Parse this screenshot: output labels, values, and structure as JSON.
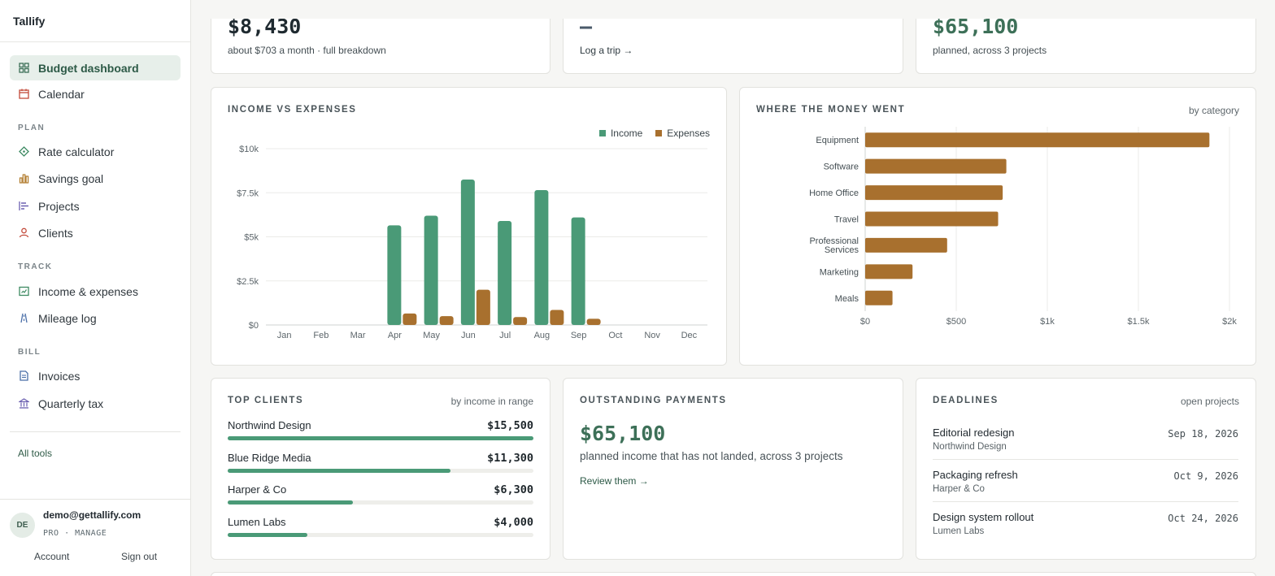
{
  "app": {
    "name": "Tallify"
  },
  "sidebar": {
    "main_items": [
      {
        "label": "Budget dashboard",
        "icon": "grid-icon",
        "active": true
      },
      {
        "label": "Calendar",
        "icon": "calendar-icon"
      }
    ],
    "sections": [
      {
        "label": "PLAN",
        "items": [
          {
            "label": "Rate calculator",
            "icon": "diamond-icon"
          },
          {
            "label": "Savings goal",
            "icon": "bar-chart-icon"
          },
          {
            "label": "Projects",
            "icon": "gantt-icon"
          },
          {
            "label": "Clients",
            "icon": "person-icon"
          }
        ]
      },
      {
        "label": "TRACK",
        "items": [
          {
            "label": "Income & expenses",
            "icon": "ledger-icon"
          },
          {
            "label": "Mileage log",
            "icon": "road-icon"
          }
        ]
      },
      {
        "label": "BILL",
        "items": [
          {
            "label": "Invoices",
            "icon": "document-icon"
          },
          {
            "label": "Quarterly tax",
            "icon": "bank-icon"
          }
        ]
      }
    ],
    "all_tools": "All tools",
    "user": {
      "initials": "DE",
      "email": "demo@gettallify.com",
      "plan": "PRO · MANAGE",
      "account": "Account",
      "sign_out": "Sign out"
    }
  },
  "summary": {
    "card1": {
      "value": "$8,430",
      "sub": "about $703 a month · full breakdown"
    },
    "card2": {
      "value": "—",
      "link": "Log a trip →"
    },
    "card3": {
      "value": "$65,100",
      "sub": "planned, across 3 projects"
    }
  },
  "colors": {
    "income": "#4a9a77",
    "expenses": "#a8702e",
    "accent": "#3d7058"
  },
  "chart_data": [
    {
      "type": "bar",
      "title": "INCOME VS EXPENSES",
      "categories": [
        "Jan",
        "Feb",
        "Mar",
        "Apr",
        "May",
        "Jun",
        "Jul",
        "Aug",
        "Sep",
        "Oct",
        "Nov",
        "Dec"
      ],
      "series": [
        {
          "name": "Income",
          "values": [
            0,
            0,
            0,
            5650,
            6200,
            8250,
            5900,
            7650,
            6100,
            0,
            0,
            0
          ]
        },
        {
          "name": "Expenses",
          "values": [
            0,
            0,
            0,
            650,
            500,
            2000,
            450,
            850,
            350,
            0,
            0,
            0
          ]
        }
      ],
      "ylim": [
        0,
        10000
      ],
      "yticks": [
        "$0",
        "$2.5k",
        "$5k",
        "$7.5k",
        "$10k"
      ],
      "ytick_values": [
        0,
        2500,
        5000,
        7500,
        10000
      ],
      "legend": "top-right",
      "grid": true
    },
    {
      "type": "bar",
      "orientation": "horizontal",
      "title": "WHERE THE MONEY WENT",
      "subtitle": "by category",
      "categories": [
        "Equipment",
        "Software",
        "Home Office",
        "Travel",
        "Professional Services",
        "Marketing",
        "Meals"
      ],
      "values": [
        1890,
        775,
        755,
        730,
        450,
        260,
        150
      ],
      "xlim": [
        0,
        2000
      ],
      "xticks": [
        "$0",
        "$500",
        "$1k",
        "$1.5k",
        "$2k"
      ],
      "xtick_values": [
        0,
        500,
        1000,
        1500,
        2000
      ],
      "grid": true
    }
  ],
  "top_clients": {
    "title": "TOP CLIENTS",
    "meta": "by income in range",
    "items": [
      {
        "name": "Northwind Design",
        "amount": "$15,500",
        "share": 1.0
      },
      {
        "name": "Blue Ridge Media",
        "amount": "$11,300",
        "share": 0.73
      },
      {
        "name": "Harper & Co",
        "amount": "$6,300",
        "share": 0.41
      },
      {
        "name": "Lumen Labs",
        "amount": "$4,000",
        "share": 0.26
      }
    ]
  },
  "outstanding": {
    "title": "OUTSTANDING PAYMENTS",
    "value": "$65,100",
    "sub": "planned income that has not landed, across 3 projects",
    "link": "Review them →"
  },
  "deadlines": {
    "title": "DEADLINES",
    "meta": "open projects",
    "items": [
      {
        "title": "Editorial redesign",
        "client": "Northwind Design",
        "date": "Sep 18, 2026"
      },
      {
        "title": "Packaging refresh",
        "client": "Harper & Co",
        "date": "Oct 9, 2026"
      },
      {
        "title": "Design system rollout",
        "client": "Lumen Labs",
        "date": "Oct 24, 2026"
      }
    ]
  }
}
